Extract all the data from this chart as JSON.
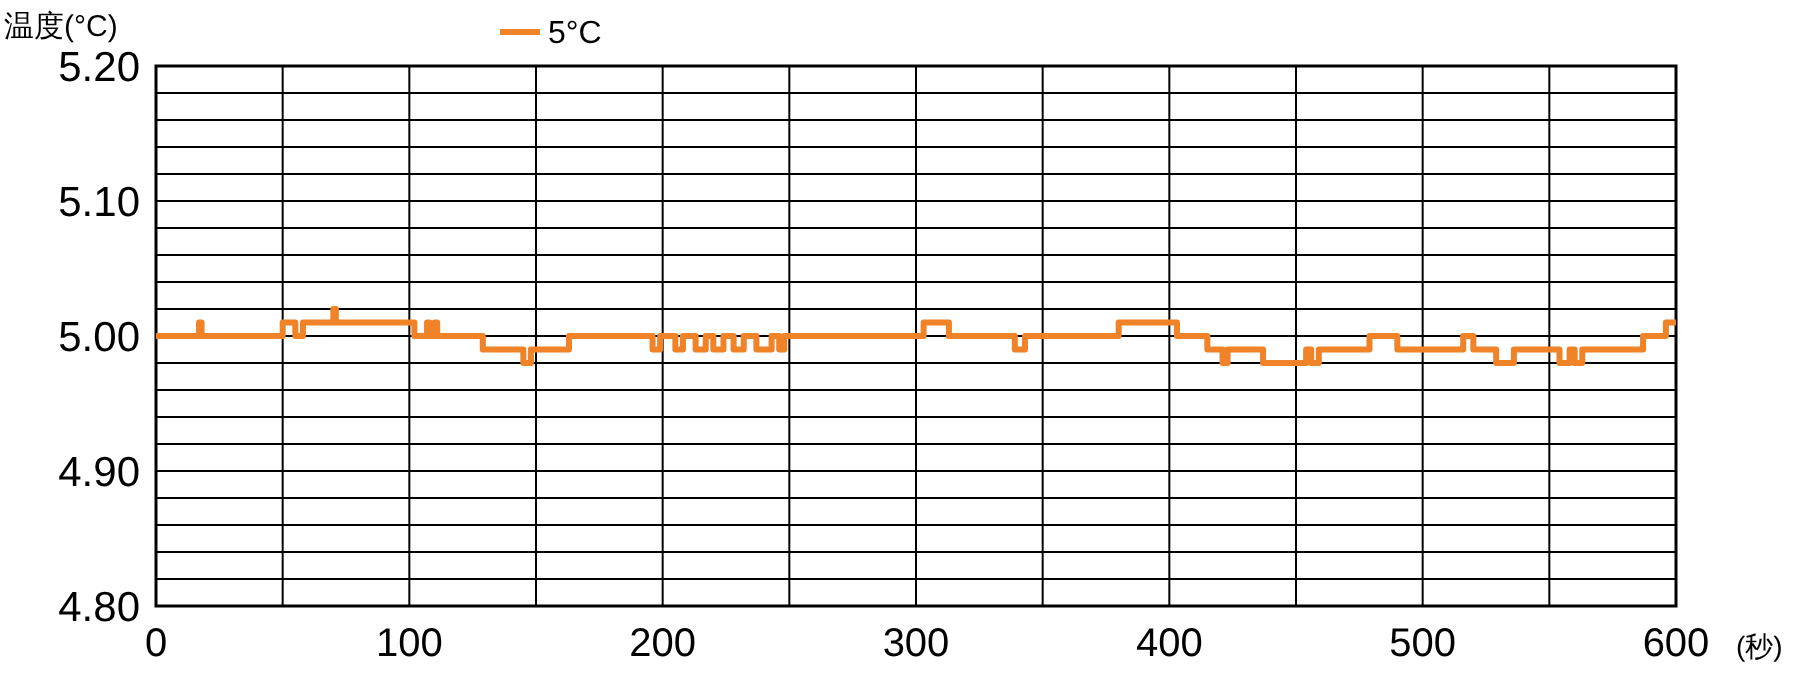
{
  "chart_data": {
    "type": "step",
    "ylabel": "温度(°C)",
    "xlabel": "(秒)",
    "legend": "top",
    "grid": true,
    "xlim": [
      0,
      600
    ],
    "ylim": [
      4.8,
      5.2
    ],
    "xticks": [
      0,
      {
        "value": 50,
        "label": null
      },
      100,
      {
        "value": 150,
        "label": null
      },
      200,
      {
        "value": 250,
        "label": null
      },
      300,
      {
        "value": 350,
        "label": null
      },
      400,
      {
        "value": 450,
        "label": null
      },
      500,
      {
        "value": 550,
        "label": null
      },
      600
    ],
    "yticks": [
      {
        "value": 4.8,
        "label": "4.80"
      },
      {
        "value": 4.82,
        "label": null
      },
      {
        "value": 4.84,
        "label": null
      },
      {
        "value": 4.86,
        "label": null
      },
      {
        "value": 4.88,
        "label": null
      },
      {
        "value": 4.9,
        "label": "4.90"
      },
      {
        "value": 4.92,
        "label": null
      },
      {
        "value": 4.94,
        "label": null
      },
      {
        "value": 4.96,
        "label": null
      },
      {
        "value": 4.98,
        "label": null
      },
      {
        "value": 5.0,
        "label": "5.00"
      },
      {
        "value": 5.02,
        "label": null
      },
      {
        "value": 5.04,
        "label": null
      },
      {
        "value": 5.06,
        "label": null
      },
      {
        "value": 5.08,
        "label": null
      },
      {
        "value": 5.1,
        "label": "5.10"
      },
      {
        "value": 5.12,
        "label": null
      },
      {
        "value": 5.14,
        "label": null
      },
      {
        "value": 5.16,
        "label": null
      },
      {
        "value": 5.18,
        "label": null
      },
      {
        "value": 5.2,
        "label": "5.20"
      }
    ],
    "series": [
      {
        "name": "5°C",
        "color": "#f08228",
        "x": [
          0,
          17,
          18,
          50,
          55,
          58,
          70,
          71,
          102,
          107,
          108,
          110,
          111,
          129,
          145,
          148,
          163,
          196,
          199,
          205,
          208,
          213,
          217,
          220,
          224,
          228,
          232,
          237,
          243,
          246,
          248,
          303,
          313,
          339,
          343,
          380,
          403,
          415,
          421,
          423,
          437,
          454,
          456,
          459,
          479,
          490,
          516,
          520,
          529,
          536,
          554,
          558,
          560,
          563,
          587,
          596,
          600
        ],
        "values": [
          5.0,
          5.01,
          5.0,
          5.01,
          5.0,
          5.01,
          5.02,
          5.01,
          5.0,
          5.01,
          5.0,
          5.01,
          5.0,
          4.99,
          4.98,
          4.99,
          5.0,
          4.99,
          5.0,
          4.99,
          5.0,
          4.99,
          5.0,
          4.99,
          5.0,
          4.99,
          5.0,
          4.99,
          5.0,
          4.99,
          5.0,
          5.01,
          5.0,
          4.99,
          5.0,
          5.01,
          5.0,
          4.99,
          4.98,
          4.99,
          4.98,
          4.99,
          4.98,
          4.99,
          5.0,
          4.99,
          5.0,
          4.99,
          4.98,
          4.99,
          4.98,
          4.99,
          4.98,
          4.99,
          5.0,
          5.01,
          5.01
        ]
      }
    ]
  }
}
